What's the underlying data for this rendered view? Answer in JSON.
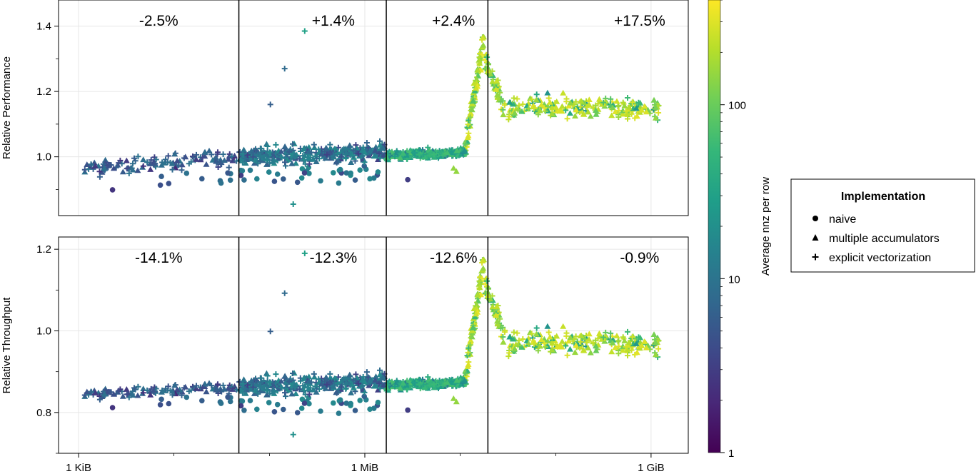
{
  "chart_data": [
    {
      "type": "scatter",
      "ylabel": "Relative Performance",
      "xlabel": "",
      "x_scale": "log2 (bytes)",
      "ylim": [
        0.82,
        1.48
      ],
      "yticks": [
        {
          "value": 1.0,
          "label": "1.0"
        },
        {
          "value": 1.2,
          "label": "1.2"
        },
        {
          "value": 1.4,
          "label": "1.4"
        }
      ],
      "boundaries_x": [
        5.6,
        10.75,
        14.3
      ],
      "region_labels": [
        {
          "x": 2.8,
          "text": "-2.5%"
        },
        {
          "x": 8.9,
          "text": "+1.4%"
        },
        {
          "x": 13.1,
          "text": "+2.4%"
        },
        {
          "x": 19.6,
          "text": "+17.5%"
        }
      ],
      "grid": true
    },
    {
      "type": "scatter",
      "ylabel": "Relative Throughput",
      "xlabel": "",
      "x_scale": "log2 (bytes)",
      "ylim": [
        0.7,
        1.23
      ],
      "yticks": [
        {
          "value": 0.8,
          "label": "0.8"
        },
        {
          "value": 1.0,
          "label": "1.0"
        },
        {
          "value": 1.2,
          "label": "1.2"
        }
      ],
      "boundaries_x": [
        5.6,
        10.75,
        14.3
      ],
      "region_labels": [
        {
          "x": 2.8,
          "text": "-14.1%"
        },
        {
          "x": 8.9,
          "text": "-12.3%"
        },
        {
          "x": 13.1,
          "text": "-12.6%"
        },
        {
          "x": 19.6,
          "text": "-0.9%"
        }
      ],
      "grid": true
    }
  ],
  "x_axis": {
    "xlim": [
      -0.7,
      21.3
    ],
    "ticks": [
      {
        "value": 0,
        "label": "1 KiB"
      },
      {
        "value": 10,
        "label": "1 MiB"
      },
      {
        "value": 20,
        "label": "1 GiB"
      }
    ],
    "minor_ticks": [
      3.33,
      6.67,
      13.33,
      16.67
    ]
  },
  "colorbar": {
    "label": "Average nnz per row",
    "scale": "log",
    "range": [
      1,
      400
    ],
    "ticks": [
      {
        "value": 1,
        "label": "1"
      },
      {
        "value": 10,
        "label": "10"
      },
      {
        "value": 100,
        "label": "100"
      }
    ],
    "colors": [
      "#440154",
      "#482878",
      "#3e4989",
      "#31688e",
      "#26828e",
      "#1f9e89",
      "#35b779",
      "#6ece58",
      "#b5de2b",
      "#fde725"
    ]
  },
  "legend": {
    "title": "Implementation",
    "placement": "right",
    "items": [
      {
        "marker": "circle",
        "label": "naive"
      },
      {
        "marker": "triangle",
        "label": "multiple accumulators"
      },
      {
        "marker": "cross",
        "label": "explicit vectorization"
      }
    ]
  }
}
